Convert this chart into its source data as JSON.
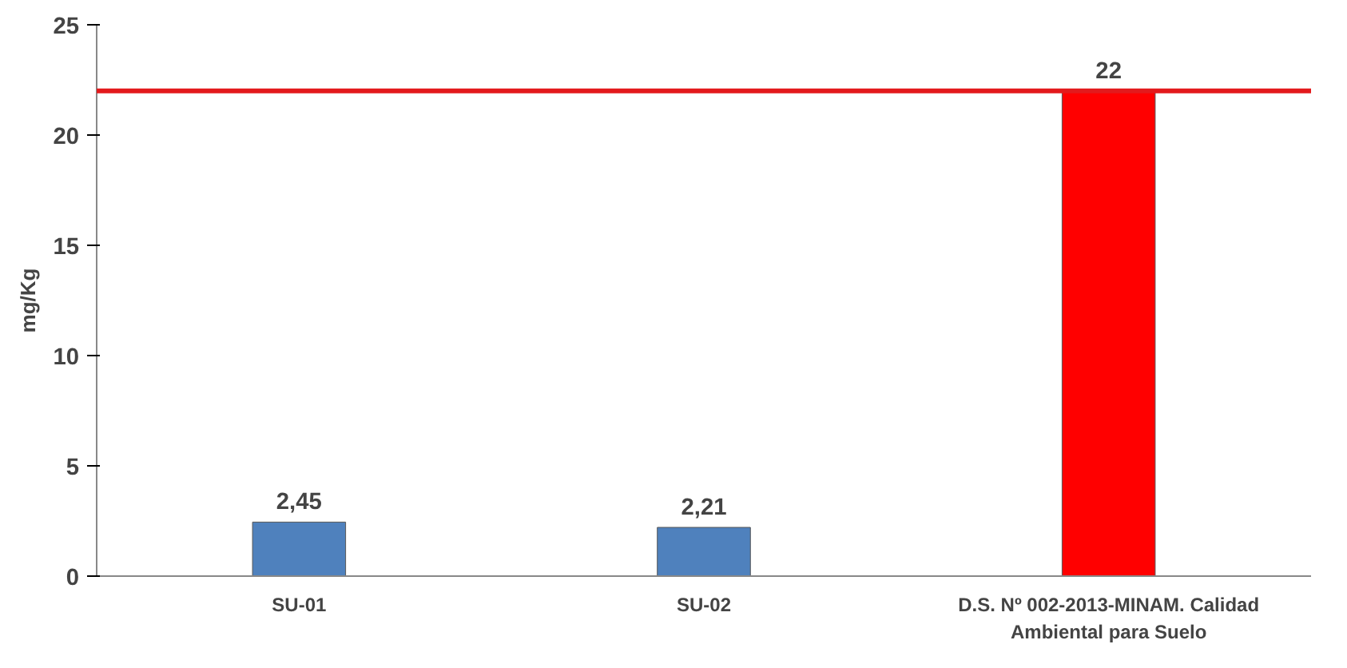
{
  "chart_data": {
    "type": "bar",
    "ylabel": "mg/Kg",
    "categories": [
      "SU-01",
      "SU-02",
      "D.S. Nº 002-2013-MINAM. Calidad Ambiental para Suelo"
    ],
    "values": [
      2.45,
      2.21,
      22
    ],
    "colors": [
      "#4f81bd",
      "#4f81bd",
      "#ff0000"
    ],
    "value_labels": [
      "2,45",
      "2,21",
      "22"
    ],
    "ylim": [
      0,
      25
    ],
    "yticks": [
      0,
      5,
      10,
      15,
      20,
      25
    ],
    "ref_lines": [
      {
        "axis": "y",
        "value": 22,
        "color": "#e31a1c"
      }
    ],
    "grid": false
  }
}
